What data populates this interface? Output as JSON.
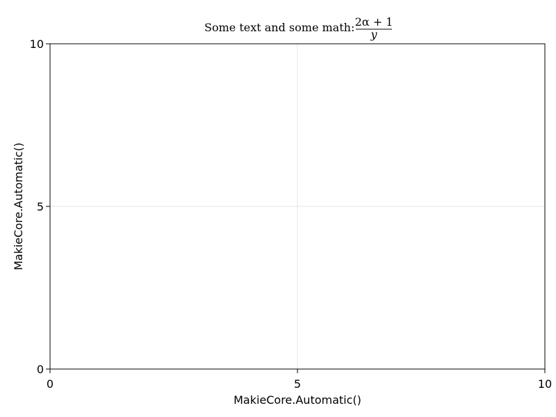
{
  "chart_data": {
    "type": "scatter",
    "title": {
      "text": "Some text and some math:",
      "math_numerator": "2α + 1",
      "math_denominator": "y"
    },
    "xlabel": "MakieCore.Automatic()",
    "ylabel": "MakieCore.Automatic()",
    "xlim": [
      0,
      10
    ],
    "ylim": [
      0,
      10
    ],
    "xticks": [
      0,
      5,
      10
    ],
    "yticks": [
      0,
      5,
      10
    ],
    "grid": true,
    "series": []
  }
}
